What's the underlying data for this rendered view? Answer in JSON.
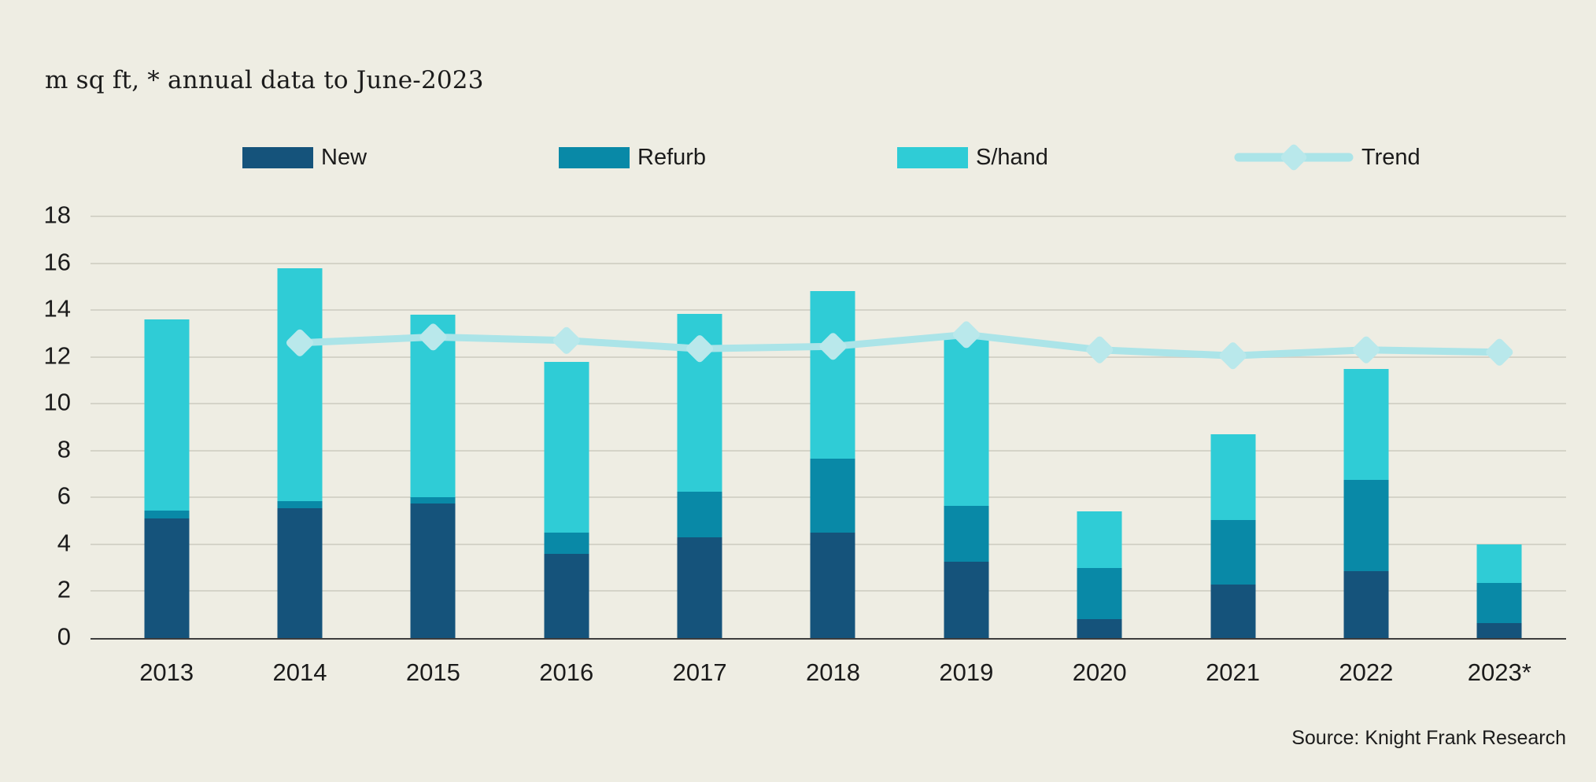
{
  "header": {
    "title": "m sq ft, * annual data to June-2023"
  },
  "footer": {
    "source": "Source: Knight Frank Research"
  },
  "colors": {
    "background": "#eeede3",
    "gridline": "#d4d3c8",
    "axis_line": "#3d3d3d",
    "text": "#1b1b1b",
    "new": "#15537b",
    "refurb": "#0989a7",
    "shand": "#2fccd6",
    "trend_line": "#abe4e8",
    "trend_marker": "#b9e8eb"
  },
  "legend": {
    "items": [
      {
        "label": "New",
        "marker": "rect",
        "color": "#15537b"
      },
      {
        "label": "Refurb",
        "marker": "rect",
        "color": "#0989a7"
      },
      {
        "label": "S/hand",
        "marker": "rect",
        "color": "#2fccd6"
      },
      {
        "label": "Trend",
        "marker": "line-diamond",
        "color": "#abe4e8"
      }
    ]
  },
  "chart_data": {
    "type": "bar",
    "stacked": true,
    "title": "m sq ft, * annual data to June-2023",
    "categories": [
      "2013",
      "2014",
      "2015",
      "2016",
      "2017",
      "2018",
      "2019",
      "2020",
      "2021",
      "2022",
      "2023*"
    ],
    "series": [
      {
        "name": "New",
        "type": "bar",
        "color": "#15537b",
        "values": [
          5.1,
          5.55,
          5.75,
          3.6,
          4.3,
          4.5,
          3.25,
          0.8,
          2.3,
          2.85,
          0.65
        ]
      },
      {
        "name": "Refurb",
        "type": "bar",
        "color": "#0989a7",
        "values": [
          0.35,
          0.3,
          0.25,
          0.9,
          1.95,
          3.15,
          2.4,
          2.2,
          2.75,
          3.9,
          1.7
        ]
      },
      {
        "name": "S/hand",
        "type": "bar",
        "color": "#2fccd6",
        "values": [
          8.15,
          9.95,
          7.8,
          7.3,
          7.6,
          7.15,
          7.15,
          2.4,
          3.65,
          4.75,
          1.65
        ]
      },
      {
        "name": "Trend",
        "type": "line",
        "color": "#abe4e8",
        "marker": "diamond",
        "marker_color": "#b9e8eb",
        "values": [
          null,
          12.6,
          12.85,
          12.7,
          12.35,
          12.45,
          12.95,
          12.3,
          12.05,
          12.3,
          12.2
        ]
      }
    ],
    "stack_totals": [
      13.6,
      15.8,
      13.8,
      11.8,
      13.85,
      14.8,
      12.8,
      5.4,
      8.7,
      11.5,
      4.0
    ],
    "ylabel": "m sq ft",
    "ylim": [
      0,
      18
    ],
    "yticks": [
      0,
      2,
      4,
      6,
      8,
      10,
      12,
      14,
      16,
      18
    ],
    "grid": true,
    "legend_position": "top"
  }
}
